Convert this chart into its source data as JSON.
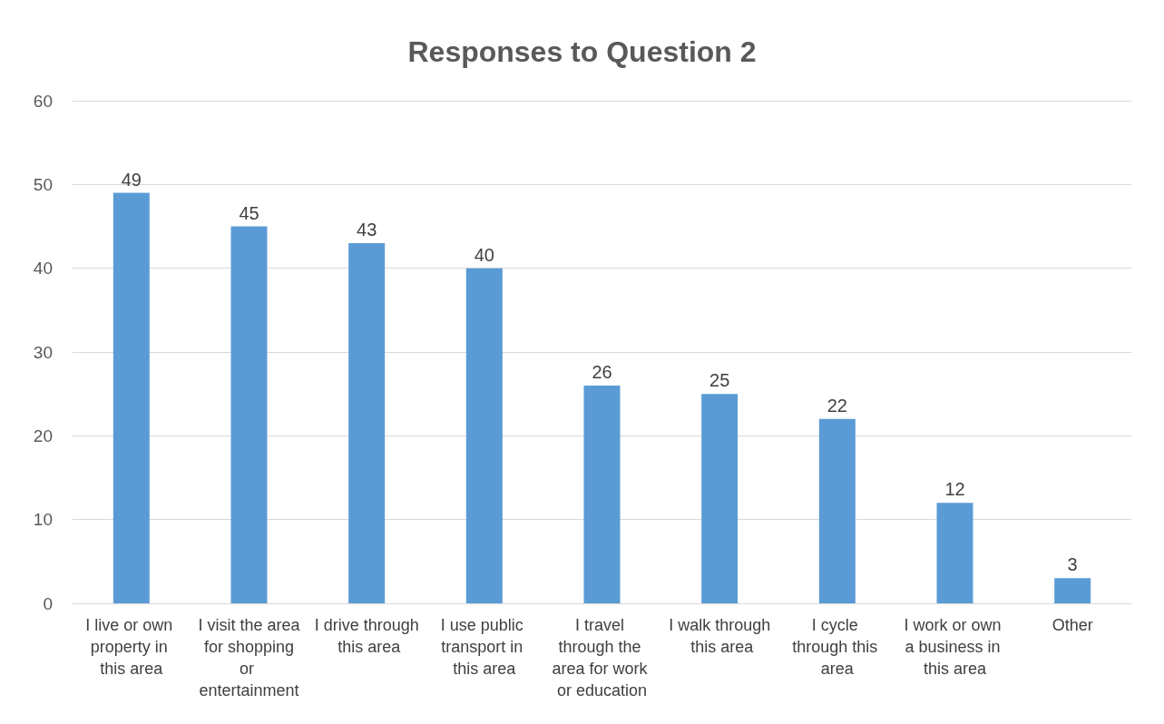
{
  "chart_data": {
    "type": "bar",
    "title": "Responses to Question 2",
    "categories": [
      "I live or own property in this area",
      "I visit the area for shopping or entertainment",
      "I drive through this area",
      "I use public transport in this area",
      "I travel through the area for work or education",
      "I walk through this area",
      "I cycle through this area",
      "I work or own a business in this area",
      "Other"
    ],
    "values": [
      49,
      45,
      43,
      40,
      26,
      25,
      22,
      12,
      3
    ],
    "color": "#5b9bd5",
    "ylim": [
      0,
      60
    ],
    "yticks": [
      0,
      10,
      20,
      30,
      40,
      50,
      60
    ],
    "grid": "y",
    "data_labels": true
  }
}
